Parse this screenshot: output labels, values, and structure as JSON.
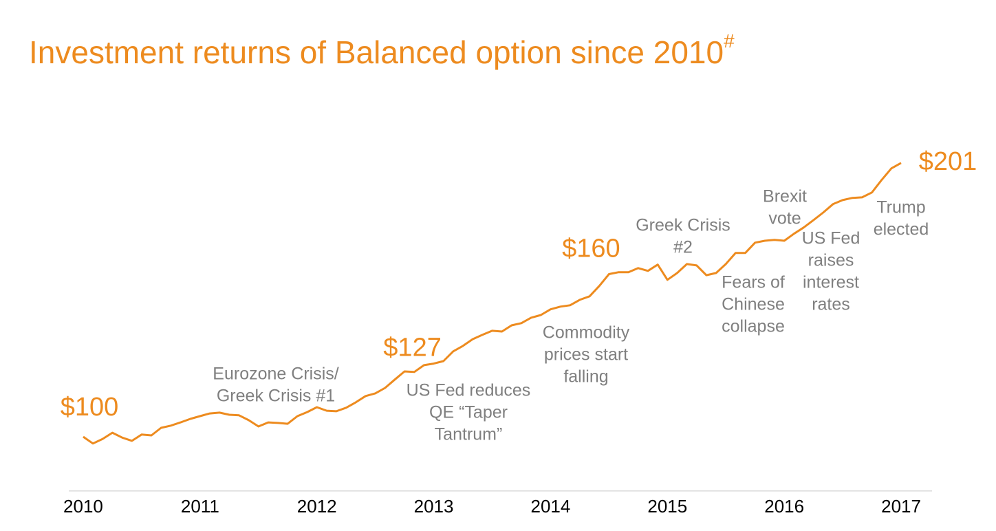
{
  "chart_data": {
    "type": "line",
    "title": "Investment returns of Balanced option since 2010",
    "title_mark": "#",
    "x": [
      2010,
      2010.0833,
      2010.1667,
      2010.25,
      2010.3333,
      2010.4167,
      2010.5,
      2010.5833,
      2010.6667,
      2010.75,
      2010.8333,
      2010.9167,
      2011,
      2011.0833,
      2011.1667,
      2011.25,
      2011.3333,
      2011.4167,
      2011.5,
      2011.5833,
      2011.6667,
      2011.75,
      2011.8333,
      2011.9167,
      2012,
      2012.0833,
      2012.1667,
      2012.25,
      2012.3333,
      2012.4167,
      2012.5,
      2012.5833,
      2012.6667,
      2012.75,
      2012.8333,
      2012.9167,
      2013,
      2013.0833,
      2013.1667,
      2013.25,
      2013.3333,
      2013.4167,
      2013.5,
      2013.5833,
      2013.6667,
      2013.75,
      2013.8333,
      2013.9167,
      2014,
      2014.0833,
      2014.1667,
      2014.25,
      2014.3333,
      2014.4167,
      2014.5,
      2014.5833,
      2014.6667,
      2014.75,
      2014.8333,
      2014.9167,
      2015,
      2015.0833,
      2015.1667,
      2015.25,
      2015.3333,
      2015.4167,
      2015.5,
      2015.5833,
      2015.6667,
      2015.75,
      2015.8333,
      2015.9167,
      2016,
      2016.0833,
      2016.1667,
      2016.25,
      2016.3333,
      2016.4167,
      2016.5,
      2016.5833,
      2016.6667,
      2016.75,
      2016.8333,
      2016.9167,
      2017
    ],
    "series": [
      {
        "name": "Balanced option",
        "color": "#ed8b1f",
        "values": [
          100,
          97.5,
          99.2,
          101.5,
          99.7,
          98.5,
          100.8,
          100.5,
          103.3,
          104.1,
          105.3,
          106.6,
          107.6,
          108.6,
          108.9,
          108.1,
          107.9,
          106.1,
          103.8,
          105.3,
          105.1,
          104.8,
          107.6,
          109.1,
          110.9,
          109.6,
          109.4,
          110.7,
          112.7,
          115.0,
          116.0,
          118.0,
          121.1,
          124.1,
          123.9,
          126.4,
          127,
          127.9,
          131.5,
          133.5,
          136.0,
          137.6,
          139.1,
          138.8,
          141.1,
          141.9,
          143.9,
          144.9,
          147.0,
          148.0,
          148.5,
          150.5,
          151.8,
          155.6,
          160,
          160.7,
          160.7,
          162.2,
          161.2,
          163.5,
          157.9,
          160.4,
          163.7,
          163.2,
          159.6,
          160.4,
          163.7,
          167.8,
          167.8,
          171.6,
          172.3,
          172.6,
          172.3,
          174.9,
          177.2,
          179.9,
          182.7,
          185.8,
          187.3,
          188.1,
          188.3,
          190.1,
          194.7,
          199.0,
          201
        ],
        "value_labels": [
          "$100",
          null,
          null,
          null,
          null,
          null,
          null,
          null,
          null,
          null,
          null,
          null,
          null,
          null,
          null,
          null,
          null,
          null,
          null,
          null,
          null,
          null,
          null,
          null,
          null,
          null,
          null,
          null,
          null,
          null,
          null,
          null,
          null,
          null,
          null,
          null,
          "$127",
          null,
          null,
          null,
          null,
          null,
          null,
          null,
          null,
          null,
          null,
          null,
          null,
          null,
          null,
          null,
          null,
          null,
          "$160",
          null,
          null,
          null,
          null,
          null,
          null,
          null,
          null,
          null,
          null,
          null,
          null,
          null,
          null,
          null,
          null,
          null,
          null,
          null,
          null,
          null,
          null,
          null,
          null,
          null,
          null,
          null,
          null,
          null,
          "$201"
        ]
      }
    ],
    "xlim": [
      2009.85,
      2017.25
    ],
    "xticks": [
      2010,
      2011,
      2012,
      2013,
      2014,
      2015,
      2016,
      2017
    ],
    "ylim": [
      80,
      220
    ],
    "annotations": [
      [
        "Eurozone Crisis/",
        "Greek Crisis #1"
      ],
      [
        "US Fed reduces",
        "QE “Taper",
        "Tantrum”"
      ],
      [
        "Commodity",
        "prices start",
        "falling"
      ],
      [
        "Greek Crisis",
        "#2"
      ],
      [
        "Brexit",
        "vote"
      ],
      [
        "Fears of",
        "Chinese",
        "collapse"
      ],
      [
        "US Fed",
        "raises",
        "interest",
        "rates"
      ],
      [
        "Trump",
        "elected"
      ]
    ]
  }
}
